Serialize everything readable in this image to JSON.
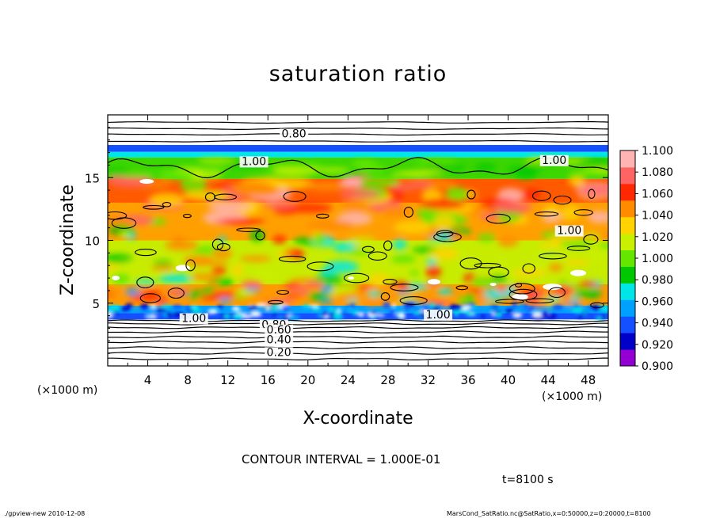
{
  "chart_data": {
    "type": "heatmap",
    "title": "saturation ratio",
    "xlabel": "X-coordinate",
    "ylabel": "Z-coordinate",
    "x_unit": "(×1000 m)",
    "y_unit": "(×1000 m)",
    "xlim": [
      0,
      50
    ],
    "ylim": [
      0,
      20
    ],
    "x_ticks": [
      "4",
      "8",
      "12",
      "16",
      "20",
      "24",
      "28",
      "32",
      "36",
      "40",
      "44",
      "48"
    ],
    "y_ticks": [
      "5",
      "10",
      "15"
    ],
    "colorbar": {
      "labels": [
        "1.100",
        "1.080",
        "1.060",
        "1.040",
        "1.020",
        "1.000",
        "0.980",
        "0.960",
        "0.940",
        "0.920",
        "0.900"
      ],
      "colors": [
        "#9400d3",
        "#0000c8",
        "#1450ff",
        "#00a0ff",
        "#00e6e6",
        "#00c800",
        "#64e600",
        "#c8f000",
        "#ffd200",
        "#ff8c00",
        "#ff2800",
        "#ff6464",
        "#ffb4b4"
      ]
    },
    "contour_labels": [
      {
        "text": "0.80",
        "x": 18.6,
        "z": 18.2
      },
      {
        "text": "1.00",
        "x": 14.6,
        "z": 16.0
      },
      {
        "text": "1.00",
        "x": 44.6,
        "z": 16.1
      },
      {
        "text": "1.00",
        "x": 46.1,
        "z": 10.5
      },
      {
        "text": "1.00",
        "x": 8.6,
        "z": 3.5
      },
      {
        "text": "1.00",
        "x": 33.0,
        "z": 3.8
      },
      {
        "text": "0.80",
        "x": 16.6,
        "z": 3.0
      },
      {
        "text": "0.60",
        "x": 17.1,
        "z": 2.6
      },
      {
        "text": "0.40",
        "x": 17.1,
        "z": 1.8
      },
      {
        "text": "0.20",
        "x": 17.1,
        "z": 0.8
      }
    ],
    "contour_interval_text": "CONTOUR INTERVAL = 1.000E-01",
    "time_text": "t=8100 s"
  },
  "footer": {
    "left": "./gpview-new  2010-12-08",
    "right": "MarsCond_SatRatio.nc@SatRatio,x=0:50000,z=0:20000,t=8100"
  }
}
